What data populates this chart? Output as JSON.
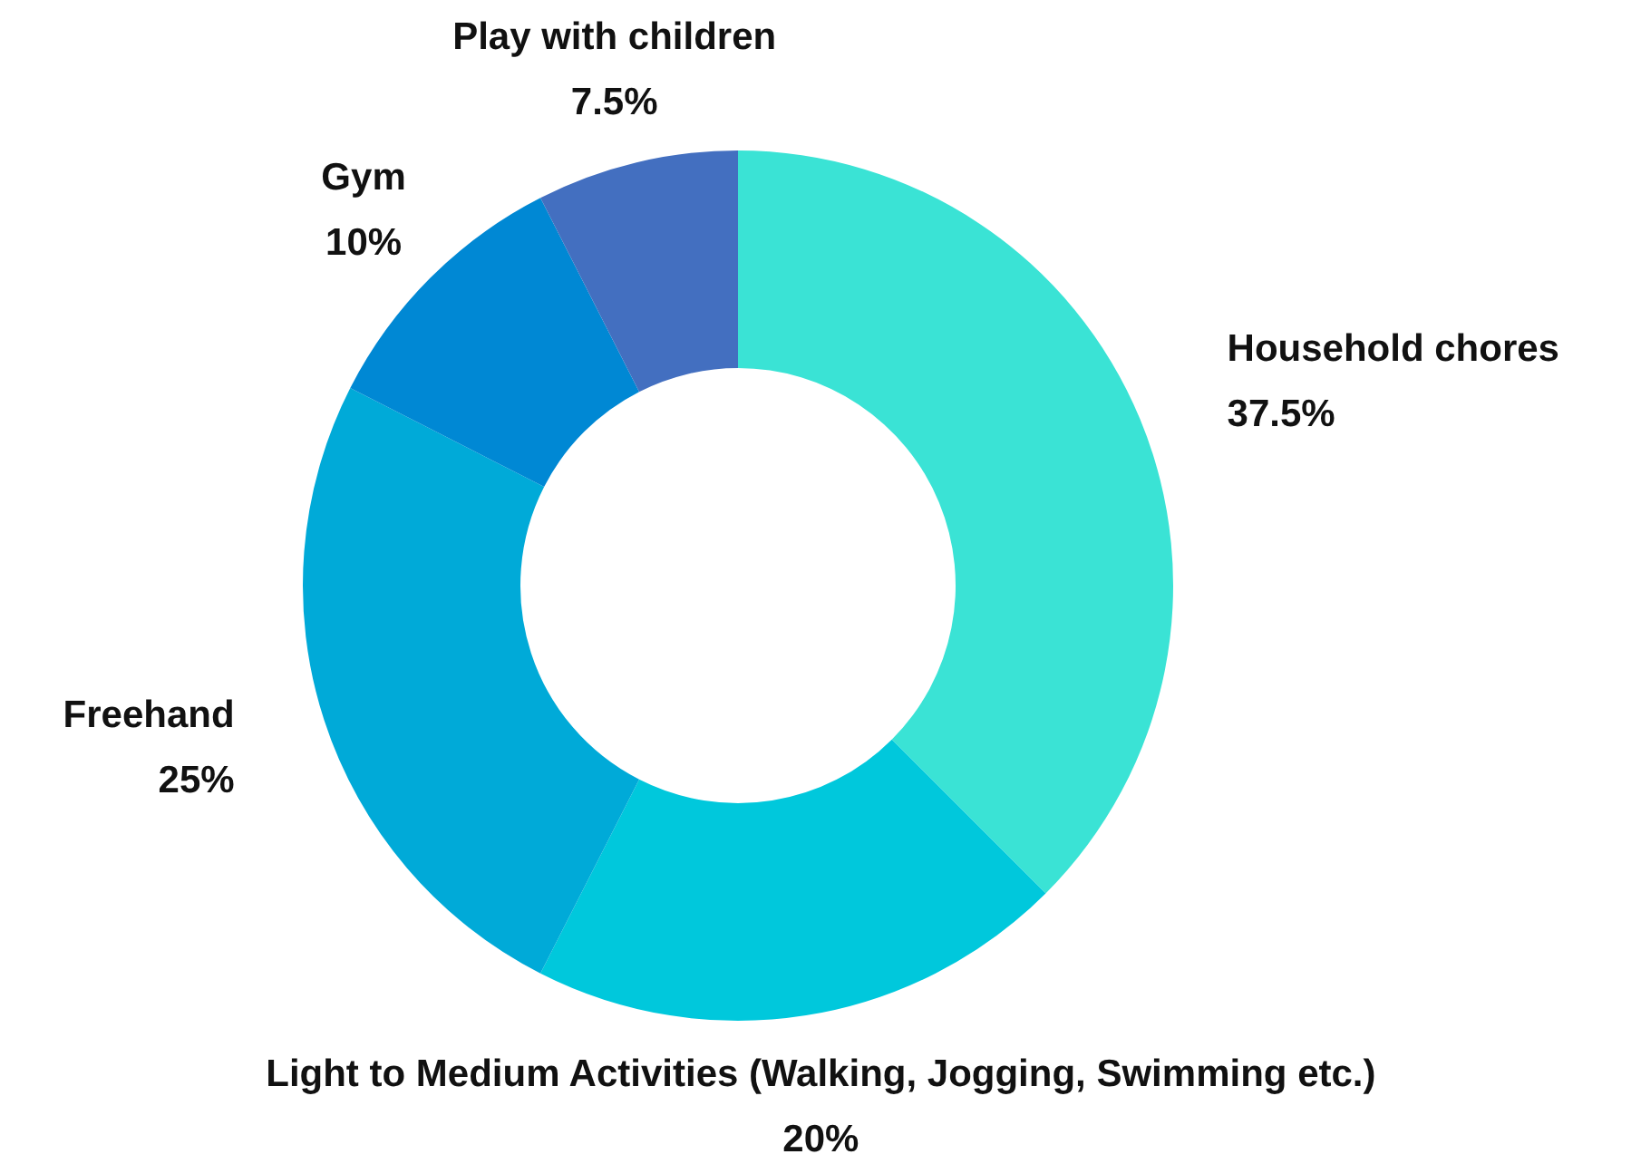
{
  "chart_data": {
    "type": "donut",
    "categories": [
      "Household chores",
      "Light to Medium Activities (Walking, Jogging, Swimming etc.)",
      "Freehand",
      "Gym",
      "Play with children"
    ],
    "values": [
      37.5,
      20,
      25,
      10,
      7.5
    ],
    "value_labels": [
      "37.5%",
      "20%",
      "25%",
      "10%",
      "7.5%"
    ],
    "colors": [
      "#3ae3d5",
      "#00c8dc",
      "#00aad8",
      "#0088d4",
      "#436fc0"
    ],
    "legend": false
  }
}
